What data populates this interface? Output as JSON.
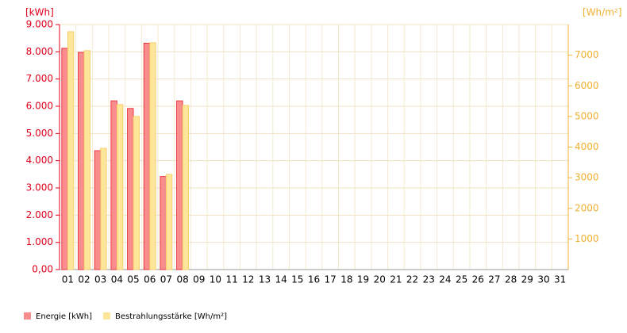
{
  "chart_data": {
    "type": "bar",
    "y_label": "[kWh]",
    "y2_label": "[Wh/m²]",
    "categories": [
      "01",
      "02",
      "03",
      "04",
      "05",
      "06",
      "07",
      "08",
      "09",
      "10",
      "11",
      "12",
      "13",
      "14",
      "15",
      "16",
      "17",
      "18",
      "19",
      "20",
      "21",
      "22",
      "23",
      "24",
      "25",
      "26",
      "27",
      "28",
      "29",
      "30",
      "31"
    ],
    "series": [
      {
        "name": "Energie [kWh]",
        "color": "#f98c8c",
        "stroke": "#e8202a",
        "values": [
          8130,
          7980,
          4370,
          6200,
          5920,
          8320,
          3420,
          6200,
          null,
          null,
          null,
          null,
          null,
          null,
          null,
          null,
          null,
          null,
          null,
          null,
          null,
          null,
          null,
          null,
          null,
          null,
          null,
          null,
          null,
          null,
          null
        ]
      },
      {
        "name": "Bestrahlungsstärke [Wh/m²]",
        "color": "#fde59a",
        "stroke": "#f5c860",
        "axis": "y2",
        "values": [
          7770,
          7150,
          3960,
          5390,
          5000,
          7410,
          3110,
          5360,
          null,
          null,
          null,
          null,
          null,
          null,
          null,
          null,
          null,
          null,
          null,
          null,
          null,
          null,
          null,
          null,
          null,
          null,
          null,
          null,
          null,
          null,
          null
        ]
      }
    ],
    "ylim": [
      0,
      9000
    ],
    "yticks": [
      {
        "value": 0,
        "label": "0,00"
      },
      {
        "value": 1000,
        "label": "1.000"
      },
      {
        "value": 2000,
        "label": "2.000"
      },
      {
        "value": 3000,
        "label": "3.000"
      },
      {
        "value": 4000,
        "label": "4.000"
      },
      {
        "value": 5000,
        "label": "5.000"
      },
      {
        "value": 6000,
        "label": "6.000"
      },
      {
        "value": 7000,
        "label": "7.000"
      },
      {
        "value": 8000,
        "label": "8.000"
      },
      {
        "value": 9000,
        "label": "9.000"
      }
    ],
    "y2lim": [
      0,
      8000
    ],
    "y2ticks": [
      1000,
      2000,
      3000,
      4000,
      5000,
      6000,
      7000
    ],
    "grid": true
  }
}
